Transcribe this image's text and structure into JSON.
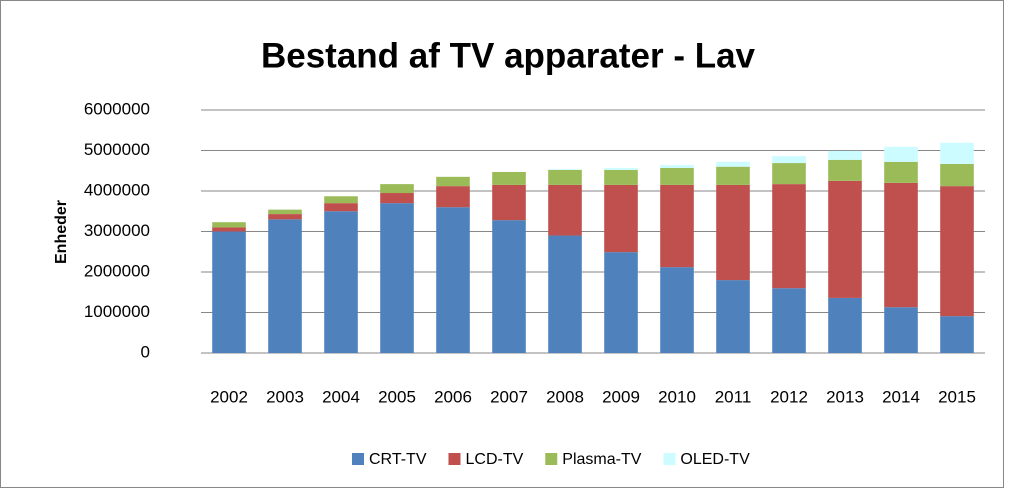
{
  "chart_data": {
    "type": "stacked_bar",
    "title": "Bestand af TV apparater - Lav",
    "y_label": "Enheder",
    "categories": [
      "2002",
      "2003",
      "2004",
      "2005",
      "2006",
      "2007",
      "2008",
      "2009",
      "2010",
      "2011",
      "2012",
      "2013",
      "2014",
      "2015"
    ],
    "series": [
      {
        "name": "CRT-TV",
        "color": "#4f81bd",
        "values": [
          3000000,
          3300000,
          3500000,
          3700000,
          3600000,
          3280000,
          2900000,
          2490000,
          2120000,
          1800000,
          1600000,
          1360000,
          1130000,
          910000
        ]
      },
      {
        "name": "LCD-TV",
        "color": "#c0504d",
        "values": [
          100000,
          130000,
          200000,
          250000,
          520000,
          870000,
          1250000,
          1660000,
          2030000,
          2350000,
          2570000,
          2890000,
          3070000,
          3210000
        ]
      },
      {
        "name": "Plasma-TV",
        "color": "#9bbb59",
        "values": [
          130000,
          110000,
          170000,
          220000,
          230000,
          320000,
          370000,
          370000,
          420000,
          450000,
          520000,
          520000,
          520000,
          550000
        ]
      },
      {
        "name": "OLED-TV",
        "color": "#ccfcff",
        "values": [
          0,
          0,
          0,
          0,
          0,
          0,
          20000,
          50000,
          70000,
          120000,
          170000,
          220000,
          370000,
          520000
        ]
      }
    ],
    "ylim": [
      0,
      6000000
    ],
    "yticks": [
      0,
      1000000,
      2000000,
      3000000,
      4000000,
      5000000,
      6000000
    ],
    "grid": true,
    "legend": "bottom"
  }
}
